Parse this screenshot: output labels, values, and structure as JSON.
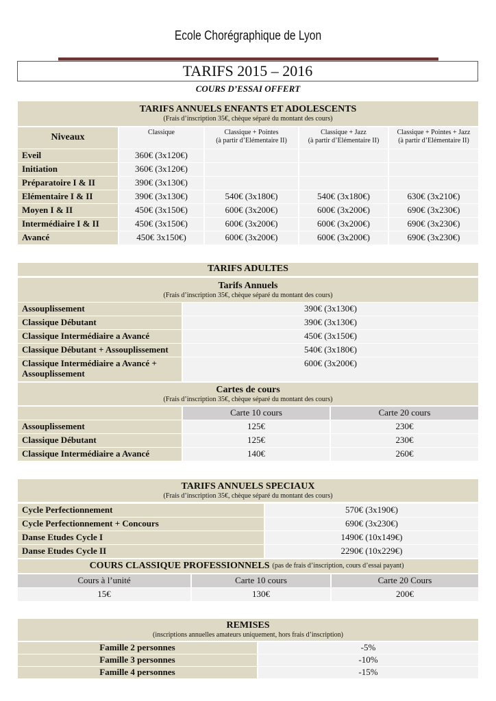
{
  "header": {
    "school": "Ecole Chorégraphique de Lyon",
    "title": "TARIFS 2015 – 2016",
    "subtitle": "COURS D’ESSAI OFFERT"
  },
  "colors": {
    "beige": "#ddd9c4",
    "light": "#f2f2f2",
    "gray": "#d0cece",
    "rule": "#6e3434"
  },
  "enfants": {
    "title": "TARIFS ANNUELS ENFANTS ET ADOLESCENTS",
    "note": "(Frais d’inscription 35€, chèque séparé du montant des cours)",
    "columns": [
      {
        "label": "Niveaux",
        "sub": ""
      },
      {
        "label": "Classique",
        "sub": ""
      },
      {
        "label": "Classique + Pointes",
        "sub": "(à partir d’Elémentaire II)"
      },
      {
        "label": "Classique + Jazz",
        "sub": "(à partir d’Elémentaire II)"
      },
      {
        "label": "Classique + Pointes + Jazz",
        "sub": "(à partir d’Elémentaire II)"
      }
    ],
    "rows": [
      [
        "Eveil",
        "360€ (3x120€)",
        "",
        "",
        ""
      ],
      [
        "Initiation",
        "360€ (3x120€)",
        "",
        "",
        ""
      ],
      [
        "Préparatoire I & II",
        "390€ (3x130€)",
        "",
        "",
        ""
      ],
      [
        "Elémentaire I & II",
        "390€ (3x130€)",
        "540€ (3x180€)",
        "540€ (3x180€)",
        "630€ (3x210€)"
      ],
      [
        "Moyen I & II",
        "450€ (3x150€)",
        "600€ (3x200€)",
        "600€ (3x200€)",
        "690€ (3x230€)"
      ],
      [
        "Intermédiaire I & II",
        "450€ (3x150€)",
        "600€ (3x200€)",
        "600€ (3x200€)",
        "690€ (3x230€)"
      ],
      [
        "Avancé",
        "450€ 3x150€)",
        "600€ (3x200€)",
        "600€ (3x200€)",
        "690€ (3x230€)"
      ]
    ]
  },
  "adultes": {
    "title": "TARIFS ADULTES",
    "annuels": {
      "title": "Tarifs Annuels",
      "note": "(Frais d’inscription 35€, chèque séparé du montant des cours)",
      "rows": [
        [
          "Assouplissement",
          "390€ (3x130€)"
        ],
        [
          "Classique Débutant",
          "390€ (3x130€)"
        ],
        [
          "Classique Intermédiaire a Avancé",
          "450€ (3x150€)"
        ],
        [
          "Classique Débutant + Assouplissement",
          "540€ (3x180€)"
        ],
        [
          "Classique Intermédiaire a Avancé + Assouplissement",
          "600€ (3x200€)"
        ]
      ]
    },
    "cartes": {
      "title": "Cartes de cours",
      "note": "(Frais d’inscription 35€, chèque séparé du montant des cours)",
      "columns": [
        "Carte 10 cours",
        "Carte 20 cours"
      ],
      "rows": [
        [
          "Assouplissement",
          "125€",
          "230€"
        ],
        [
          "Classique Débutant",
          "125€",
          "230€"
        ],
        [
          "Classique Intermédiaire a Avancé",
          "140€",
          "260€"
        ]
      ]
    }
  },
  "speciaux": {
    "title": "TARIFS ANNUELS SPECIAUX",
    "note": "(Frais d’inscription 35€, chèque séparé du montant des cours)",
    "rows": [
      [
        "Cycle Perfectionnement",
        "570€ (3x190€)"
      ],
      [
        "Cycle Perfectionnement + Concours",
        "690€ (3x230€)"
      ],
      [
        "Danse Etudes Cycle I",
        "1490€ (10x149€)"
      ],
      [
        "Danse Etudes Cycle II",
        "2290€ (10x229€)"
      ]
    ],
    "pro": {
      "title": "COURS CLASSIQUE PROFESSIONNELS",
      "note": "(pas de frais d’inscription, cours d’essai payant)",
      "columns": [
        "Cours à l’unité",
        "Carte 10 cours",
        "Carte 20 Cours"
      ],
      "values": [
        "15€",
        "130€",
        "200€"
      ]
    }
  },
  "remises": {
    "title": "REMISES",
    "note": "(inscriptions annuelles amateurs uniquement, hors frais d’inscription)",
    "rows": [
      [
        "Famille 2 personnes",
        "-5%"
      ],
      [
        "Famille 3 personnes",
        "-10%"
      ],
      [
        "Famille 4 personnes",
        "-15%"
      ]
    ]
  }
}
